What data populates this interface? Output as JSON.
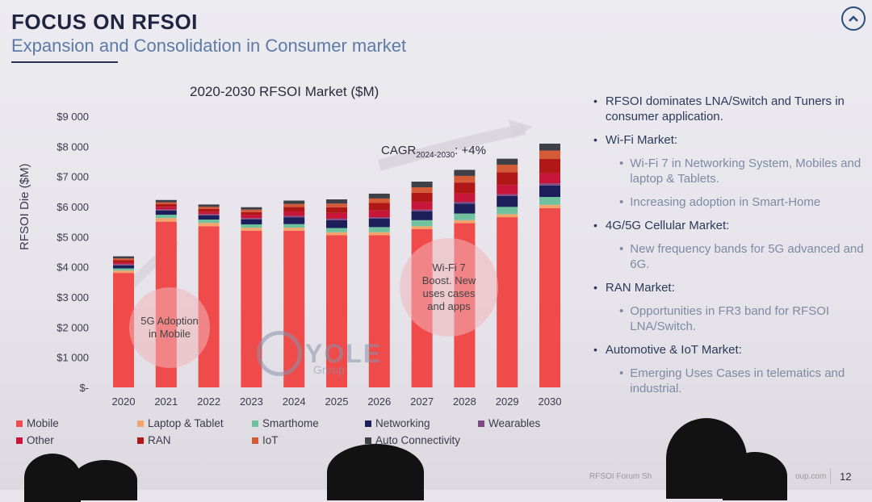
{
  "slide": {
    "title": "FOCUS ON RFSOI",
    "subtitle": "Expansion and Consolidation in Consumer market",
    "nav_icon": "chevron-up-icon",
    "page_number": "12",
    "footer_text": "RFSOI Forum Sh",
    "footer_domain": "oup.com",
    "logo_text": "YOLE",
    "logo_sub": "Group"
  },
  "bubbles": {
    "adoption_5g": "5G Adoption in Mobile",
    "wifi7": "Wi-Fi 7 Boost. New uses cases and apps",
    "cagr_prefix": "CAGR",
    "cagr_sub": "2024-2030",
    "cagr_value": ": +4%"
  },
  "bullets": [
    {
      "text": "RFSOI dominates LNA/Switch and Tuners in consumer application.",
      "subs": []
    },
    {
      "text": "Wi-Fi Market:",
      "subs": [
        "Wi-Fi 7 in Networking System, Mobiles and laptop & Tablets.",
        "Increasing adoption in Smart-Home"
      ]
    },
    {
      "text": "4G/5G Cellular Market:",
      "subs": [
        "New frequency bands for 5G advanced and 6G."
      ]
    },
    {
      "text": "RAN Market:",
      "subs": [
        "Opportunities in FR3 band for RFSOI LNA/Switch."
      ]
    },
    {
      "text": "Automotive & IoT Market:",
      "subs": [
        "Emerging Uses Cases in telematics and industrial."
      ]
    }
  ],
  "chart_data": {
    "type": "bar",
    "stacked": true,
    "title": "2020-2030 RFSOI Market ($M)",
    "ylabel": "RFSOI Die ($M)",
    "ylim": [
      0,
      9000
    ],
    "yticks": [
      "$-",
      "$1 000",
      "$2 000",
      "$3 000",
      "$4 000",
      "$5 000",
      "$6 000",
      "$7 000",
      "$8 000",
      "$9 000"
    ],
    "categories": [
      "2020",
      "2021",
      "2022",
      "2023",
      "2024",
      "2025",
      "2026",
      "2027",
      "2028",
      "2029",
      "2030"
    ],
    "series": [
      {
        "name": "Mobile",
        "color": "#ef4b4b",
        "values": [
          3800,
          5500,
          5350,
          5200,
          5200,
          5050,
          5050,
          5250,
          5450,
          5650,
          5950
        ]
      },
      {
        "name": "Laptop & Tablet",
        "color": "#f2a46a",
        "values": [
          80,
          120,
          110,
          100,
          100,
          100,
          100,
          100,
          100,
          100,
          110
        ]
      },
      {
        "name": "Smarthome",
        "color": "#6fc29d",
        "values": [
          70,
          110,
          110,
          110,
          120,
          140,
          170,
          200,
          220,
          240,
          260
        ]
      },
      {
        "name": "Networking",
        "color": "#1c1f5a",
        "values": [
          100,
          140,
          140,
          170,
          220,
          260,
          280,
          290,
          330,
          360,
          380
        ]
      },
      {
        "name": "Wearables",
        "color": "#7e4b86",
        "values": [
          40,
          40,
          40,
          40,
          50,
          50,
          50,
          60,
          60,
          60,
          70
        ]
      },
      {
        "name": "Other",
        "color": "#c8163a",
        "values": [
          50,
          80,
          70,
          100,
          150,
          190,
          220,
          250,
          280,
          310,
          340
        ]
      },
      {
        "name": "RAN",
        "color": "#b01818",
        "values": [
          80,
          90,
          100,
          100,
          150,
          190,
          250,
          310,
          360,
          420,
          470
        ]
      },
      {
        "name": "IoT",
        "color": "#d45a38",
        "values": [
          60,
          60,
          70,
          80,
          100,
          120,
          150,
          180,
          220,
          250,
          280
        ]
      },
      {
        "name": "Auto Connectivity",
        "color": "#3f3f46",
        "values": [
          70,
          80,
          80,
          80,
          110,
          140,
          160,
          190,
          200,
          200,
          230
        ]
      }
    ],
    "legend_position": "bottom",
    "grid": false
  }
}
